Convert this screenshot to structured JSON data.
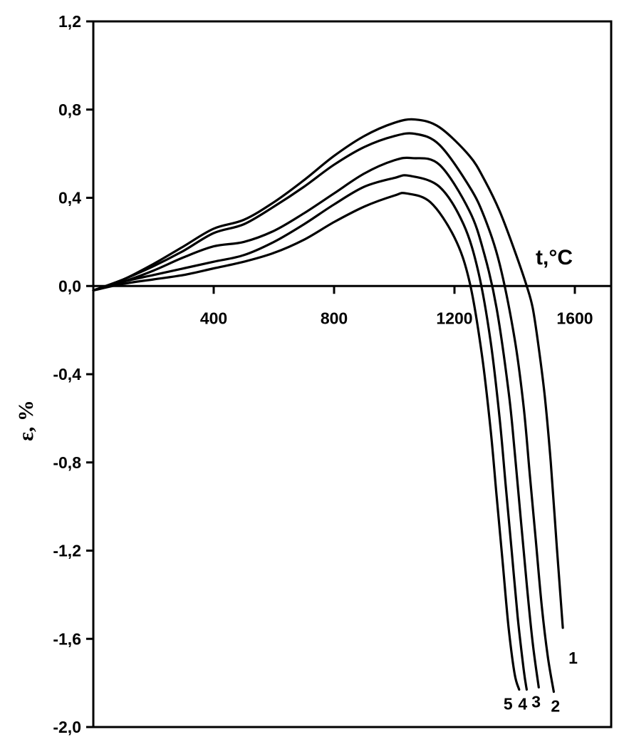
{
  "chart_data": {
    "type": "line",
    "xlabel": "t,°C",
    "ylabel": "ε, %",
    "xlim": [
      0,
      1700
    ],
    "ylim": [
      -2.0,
      1.2
    ],
    "xticks": [
      400,
      800,
      1200,
      1600
    ],
    "xtick_labels": [
      "400",
      "800",
      "1200",
      "1600"
    ],
    "yticks": [
      1.2,
      0.8,
      0.4,
      0.0,
      -0.4,
      -0.8,
      -1.2,
      -1.6,
      -2.0
    ],
    "ytick_labels": [
      "1,2",
      "0,8",
      "0,4",
      "0,0",
      "-0,4",
      "-0,8",
      "-1,2",
      "-1,6",
      "-2,0"
    ],
    "grid": false,
    "legend": "none",
    "series": [
      {
        "name": "1",
        "x": [
          0,
          100,
          200,
          300,
          400,
          500,
          600,
          700,
          800,
          900,
          1000,
          1070,
          1150,
          1250,
          1300,
          1350,
          1400,
          1440,
          1460,
          1480,
          1500,
          1520,
          1540,
          1560
        ],
        "y": [
          -0.02,
          0.03,
          0.1,
          0.18,
          0.26,
          0.3,
          0.38,
          0.48,
          0.59,
          0.68,
          0.74,
          0.755,
          0.72,
          0.59,
          0.48,
          0.34,
          0.16,
          0.0,
          -0.1,
          -0.28,
          -0.5,
          -0.8,
          -1.18,
          -1.55
        ]
      },
      {
        "name": "2",
        "x": [
          0,
          100,
          200,
          300,
          400,
          500,
          600,
          700,
          800,
          900,
          1000,
          1070,
          1150,
          1250,
          1300,
          1350,
          1400,
          1430,
          1450,
          1470,
          1490,
          1510,
          1530
        ],
        "y": [
          -0.02,
          0.03,
          0.09,
          0.16,
          0.24,
          0.28,
          0.36,
          0.45,
          0.55,
          0.63,
          0.68,
          0.69,
          0.64,
          0.45,
          0.31,
          0.1,
          -0.24,
          -0.55,
          -0.85,
          -1.15,
          -1.45,
          -1.68,
          -1.84
        ]
      },
      {
        "name": "3",
        "x": [
          0,
          100,
          200,
          300,
          400,
          500,
          600,
          700,
          800,
          900,
          1000,
          1060,
          1150,
          1250,
          1300,
          1340,
          1380,
          1400,
          1420,
          1440,
          1460,
          1480
        ],
        "y": [
          -0.02,
          0.02,
          0.07,
          0.13,
          0.18,
          0.2,
          0.25,
          0.33,
          0.42,
          0.51,
          0.57,
          0.58,
          0.55,
          0.34,
          0.14,
          -0.1,
          -0.48,
          -0.75,
          -1.05,
          -1.35,
          -1.62,
          -1.82
        ]
      },
      {
        "name": "4",
        "x": [
          0,
          100,
          200,
          300,
          400,
          500,
          600,
          700,
          800,
          900,
          1000,
          1050,
          1150,
          1230,
          1280,
          1320,
          1350,
          1370,
          1390,
          1410,
          1430,
          1440
        ],
        "y": [
          -0.02,
          0.02,
          0.05,
          0.08,
          0.11,
          0.14,
          0.2,
          0.28,
          0.37,
          0.45,
          0.49,
          0.5,
          0.45,
          0.28,
          0.06,
          -0.25,
          -0.6,
          -0.9,
          -1.2,
          -1.5,
          -1.74,
          -1.83
        ]
      },
      {
        "name": "5",
        "x": [
          0,
          100,
          200,
          300,
          400,
          500,
          600,
          700,
          800,
          900,
          1000,
          1040,
          1120,
          1200,
          1250,
          1290,
          1320,
          1340,
          1360,
          1380,
          1400,
          1415
        ],
        "y": [
          -0.02,
          0.01,
          0.03,
          0.05,
          0.08,
          0.11,
          0.15,
          0.21,
          0.29,
          0.36,
          0.41,
          0.42,
          0.38,
          0.22,
          0.02,
          -0.3,
          -0.65,
          -0.95,
          -1.25,
          -1.55,
          -1.76,
          -1.83
        ]
      }
    ]
  }
}
